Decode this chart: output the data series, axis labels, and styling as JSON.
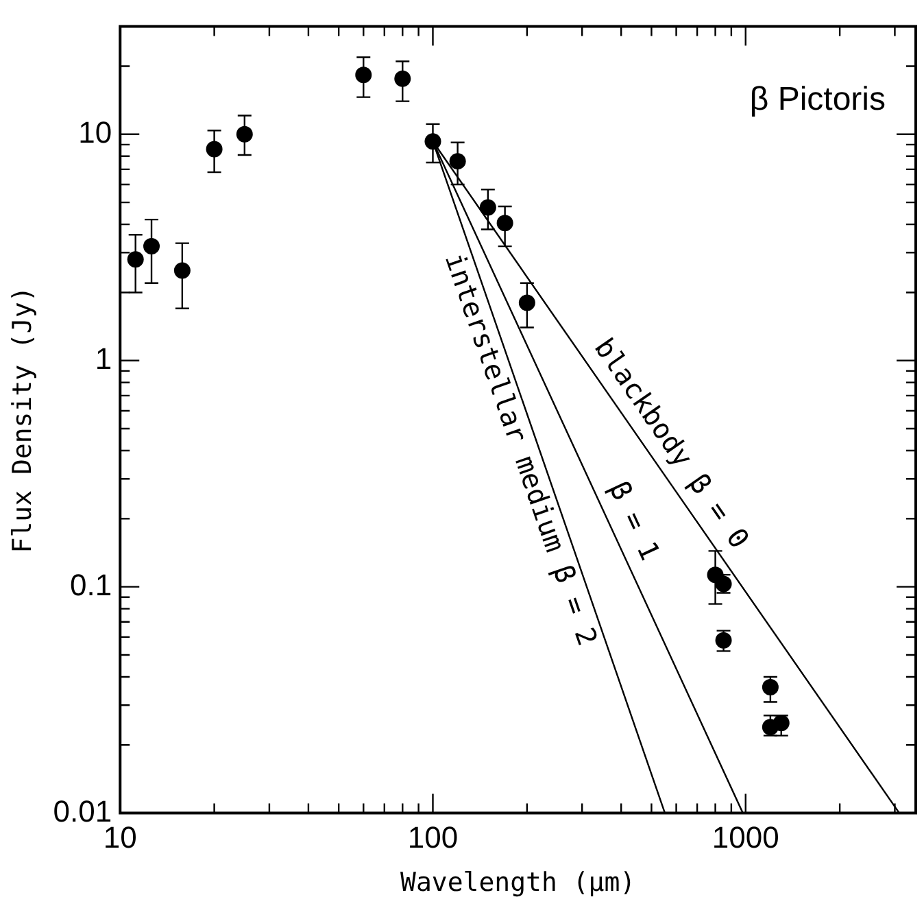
{
  "chart_data": {
    "type": "scatter",
    "xlabel": "Wavelength (μm)",
    "ylabel": "Flux Density (Jy)",
    "log": "xy",
    "grid": false,
    "legend": false,
    "xlim": [
      10,
      3500
    ],
    "ylim": [
      0.01,
      30
    ],
    "xticks": [
      10,
      {
        "value": 20,
        "label": null
      },
      {
        "value": 30,
        "label": null
      },
      {
        "value": 40,
        "label": null
      },
      {
        "value": 50,
        "label": null
      },
      {
        "value": 60,
        "label": null
      },
      {
        "value": 70,
        "label": null
      },
      {
        "value": 80,
        "label": null
      },
      {
        "value": 90,
        "label": null
      },
      100,
      {
        "value": 200,
        "label": null
      },
      {
        "value": 300,
        "label": null
      },
      {
        "value": 400,
        "label": null
      },
      {
        "value": 500,
        "label": null
      },
      {
        "value": 600,
        "label": null
      },
      {
        "value": 700,
        "label": null
      },
      {
        "value": 800,
        "label": null
      },
      {
        "value": 900,
        "label": null
      },
      1000,
      {
        "value": 2000,
        "label": null
      },
      {
        "value": 3000,
        "label": null
      }
    ],
    "yticks": [
      0.01,
      {
        "value": 0.02,
        "label": null
      },
      {
        "value": 0.03,
        "label": null
      },
      {
        "value": 0.04,
        "label": null
      },
      {
        "value": 0.05,
        "label": null
      },
      {
        "value": 0.06,
        "label": null
      },
      {
        "value": 0.07,
        "label": null
      },
      {
        "value": 0.08,
        "label": null
      },
      {
        "value": 0.09,
        "label": null
      },
      0.1,
      {
        "value": 0.2,
        "label": null
      },
      {
        "value": 0.3,
        "label": null
      },
      {
        "value": 0.4,
        "label": null
      },
      {
        "value": 0.5,
        "label": null
      },
      {
        "value": 0.6,
        "label": null
      },
      {
        "value": 0.7,
        "label": null
      },
      {
        "value": 0.8,
        "label": null
      },
      {
        "value": 0.9,
        "label": null
      },
      1,
      {
        "value": 2,
        "label": null
      },
      {
        "value": 3,
        "label": null
      },
      {
        "value": 4,
        "label": null
      },
      {
        "value": 5,
        "label": null
      },
      {
        "value": 6,
        "label": null
      },
      {
        "value": 7,
        "label": null
      },
      {
        "value": 8,
        "label": null
      },
      {
        "value": 9,
        "label": null
      },
      10,
      {
        "value": 20,
        "label": null
      }
    ],
    "series": [
      {
        "type": "scatter",
        "color": "#000000",
        "marker": "circle",
        "x": [
          11.2,
          12.6,
          15.8,
          20,
          25,
          60,
          80,
          100,
          120,
          150,
          170,
          200,
          800,
          850,
          850,
          1200,
          1200,
          1300
        ],
        "values": [
          2.8,
          3.2,
          2.5,
          8.6,
          10,
          18.3,
          17.6,
          9.3,
          7.6,
          4.75,
          4.05,
          1.8,
          0.113,
          0.103,
          0.058,
          0.036,
          0.024,
          0.025
        ],
        "errors": [
          [
            2.0,
            3.6
          ],
          [
            2.2,
            4.2
          ],
          [
            1.7,
            3.3
          ],
          [
            6.8,
            10.4
          ],
          [
            8.1,
            12.1
          ],
          [
            14.6,
            21.9
          ],
          [
            14,
            21
          ],
          [
            7.5,
            11.1
          ],
          [
            6,
            9.2
          ],
          [
            3.8,
            5.7
          ],
          [
            3.2,
            4.8
          ],
          [
            1.4,
            2.2
          ],
          [
            0.084,
            0.144
          ],
          [
            0.094,
            0.113
          ],
          [
            0.052,
            0.064
          ],
          [
            0.031,
            0.04
          ],
          [
            0.022,
            0.027
          ],
          [
            0.022,
            0.027
          ]
        ]
      },
      {
        "type": "line",
        "name": "blackbody β = 0",
        "color": "#000000",
        "marker": "none",
        "x": [
          100,
          3100
        ],
        "values": [
          9.3,
          0.01
        ]
      },
      {
        "type": "line",
        "name": "β = 1",
        "color": "#000000",
        "marker": "none",
        "x": [
          100,
          980
        ],
        "values": [
          9.3,
          0.01
        ]
      },
      {
        "type": "line",
        "name": "interstellar medium β = 2",
        "color": "#000000",
        "marker": "none",
        "x": [
          100,
          552
        ],
        "values": [
          9.3,
          0.01
        ]
      }
    ],
    "annotations": [
      "β Pictoris"
    ]
  }
}
